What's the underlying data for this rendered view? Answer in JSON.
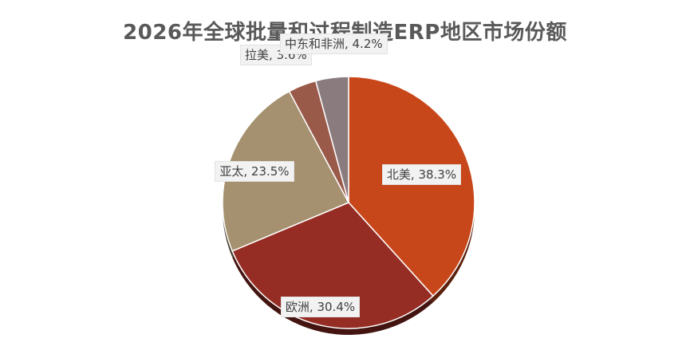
{
  "chart_data": {
    "type": "pie",
    "title": "2026年全球批量和过程制造ERP地区市场份额",
    "slices": [
      {
        "label": "北美",
        "value": 38.3,
        "display": "北美, 38.3%",
        "color": "#c8471a"
      },
      {
        "label": "欧洲",
        "value": 30.4,
        "display": "欧洲, 30.4%",
        "color": "#952d24"
      },
      {
        "label": "亚太",
        "value": 23.5,
        "display": "亚太, 23.5%",
        "color": "#a59170"
      },
      {
        "label": "拉美",
        "value": 3.6,
        "display": "拉美, 3.6%",
        "color": "#9a5a4a"
      },
      {
        "label": "中东和非洲",
        "value": 4.2,
        "display": "中东和非洲, 4.2%",
        "color": "#8a7c7e"
      }
    ],
    "legend": "none",
    "data_labels": "outside-callout"
  }
}
